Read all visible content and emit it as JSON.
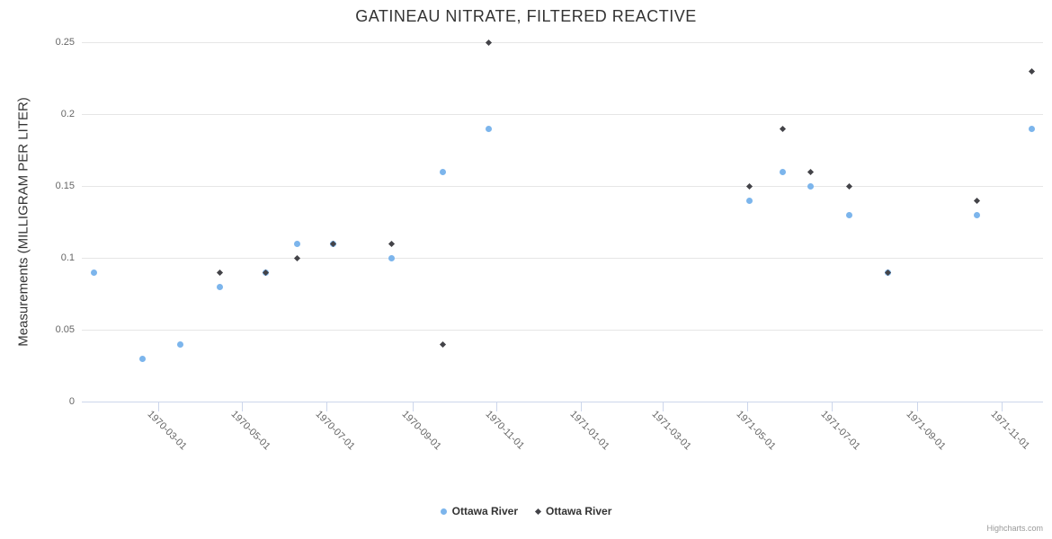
{
  "chart_data": {
    "type": "scatter",
    "title": "GATINEAU NITRATE, FILTERED REACTIVE",
    "xlabel": "",
    "ylabel": "Measurements (MILLIGRAM PER LITER)",
    "grid": "horizontal",
    "legend_position": "bottom-center",
    "x_axis": {
      "type": "datetime",
      "min": "1970-01-05",
      "max": "1971-12-01",
      "ticks": [
        "1970-03-01",
        "1970-05-01",
        "1970-07-01",
        "1970-09-01",
        "1970-11-01",
        "1971-01-01",
        "1971-03-01",
        "1971-05-01",
        "1971-07-01",
        "1971-09-01",
        "1971-11-01"
      ]
    },
    "y_axis": {
      "min": 0,
      "max": 0.25,
      "ticks": [
        0,
        0.05,
        0.1,
        0.15,
        0.2,
        0.25
      ],
      "tick_labels": [
        "0",
        "0.05",
        "0.1",
        "0.15",
        "0.2",
        "0.25"
      ]
    },
    "series": [
      {
        "name": "Ottawa River",
        "marker": "circle",
        "color": "#7cb5ec",
        "points": [
          {
            "date": "1970-01-14",
            "value": 0.09
          },
          {
            "date": "1970-02-18",
            "value": 0.03
          },
          {
            "date": "1970-03-17",
            "value": 0.04
          },
          {
            "date": "1970-04-15",
            "value": 0.08
          },
          {
            "date": "1970-05-18",
            "value": 0.09
          },
          {
            "date": "1970-06-10",
            "value": 0.11
          },
          {
            "date": "1970-07-06",
            "value": 0.11
          },
          {
            "date": "1970-08-17",
            "value": 0.1
          },
          {
            "date": "1970-09-23",
            "value": 0.16
          },
          {
            "date": "1970-10-26",
            "value": 0.19
          },
          {
            "date": "1971-05-03",
            "value": 0.14
          },
          {
            "date": "1971-05-27",
            "value": 0.16
          },
          {
            "date": "1971-06-16",
            "value": 0.15
          },
          {
            "date": "1971-07-14",
            "value": 0.13
          },
          {
            "date": "1971-08-11",
            "value": 0.09
          },
          {
            "date": "1971-10-14",
            "value": 0.13
          },
          {
            "date": "1971-11-23",
            "value": 0.19
          }
        ]
      },
      {
        "name": "Ottawa River",
        "marker": "diamond",
        "color": "#434348",
        "points": [
          {
            "date": "1970-04-15",
            "value": 0.09
          },
          {
            "date": "1970-05-18",
            "value": 0.09
          },
          {
            "date": "1970-06-10",
            "value": 0.1
          },
          {
            "date": "1970-07-06",
            "value": 0.11
          },
          {
            "date": "1970-08-17",
            "value": 0.11
          },
          {
            "date": "1970-09-23",
            "value": 0.04
          },
          {
            "date": "1970-10-26",
            "value": 0.25
          },
          {
            "date": "1971-05-03",
            "value": 0.15
          },
          {
            "date": "1971-05-27",
            "value": 0.19
          },
          {
            "date": "1971-06-16",
            "value": 0.16
          },
          {
            "date": "1971-07-14",
            "value": 0.15
          },
          {
            "date": "1971-08-11",
            "value": 0.09
          },
          {
            "date": "1971-10-14",
            "value": 0.14
          },
          {
            "date": "1971-11-23",
            "value": 0.23
          }
        ]
      }
    ]
  },
  "credits": {
    "label": "Highcharts.com"
  }
}
